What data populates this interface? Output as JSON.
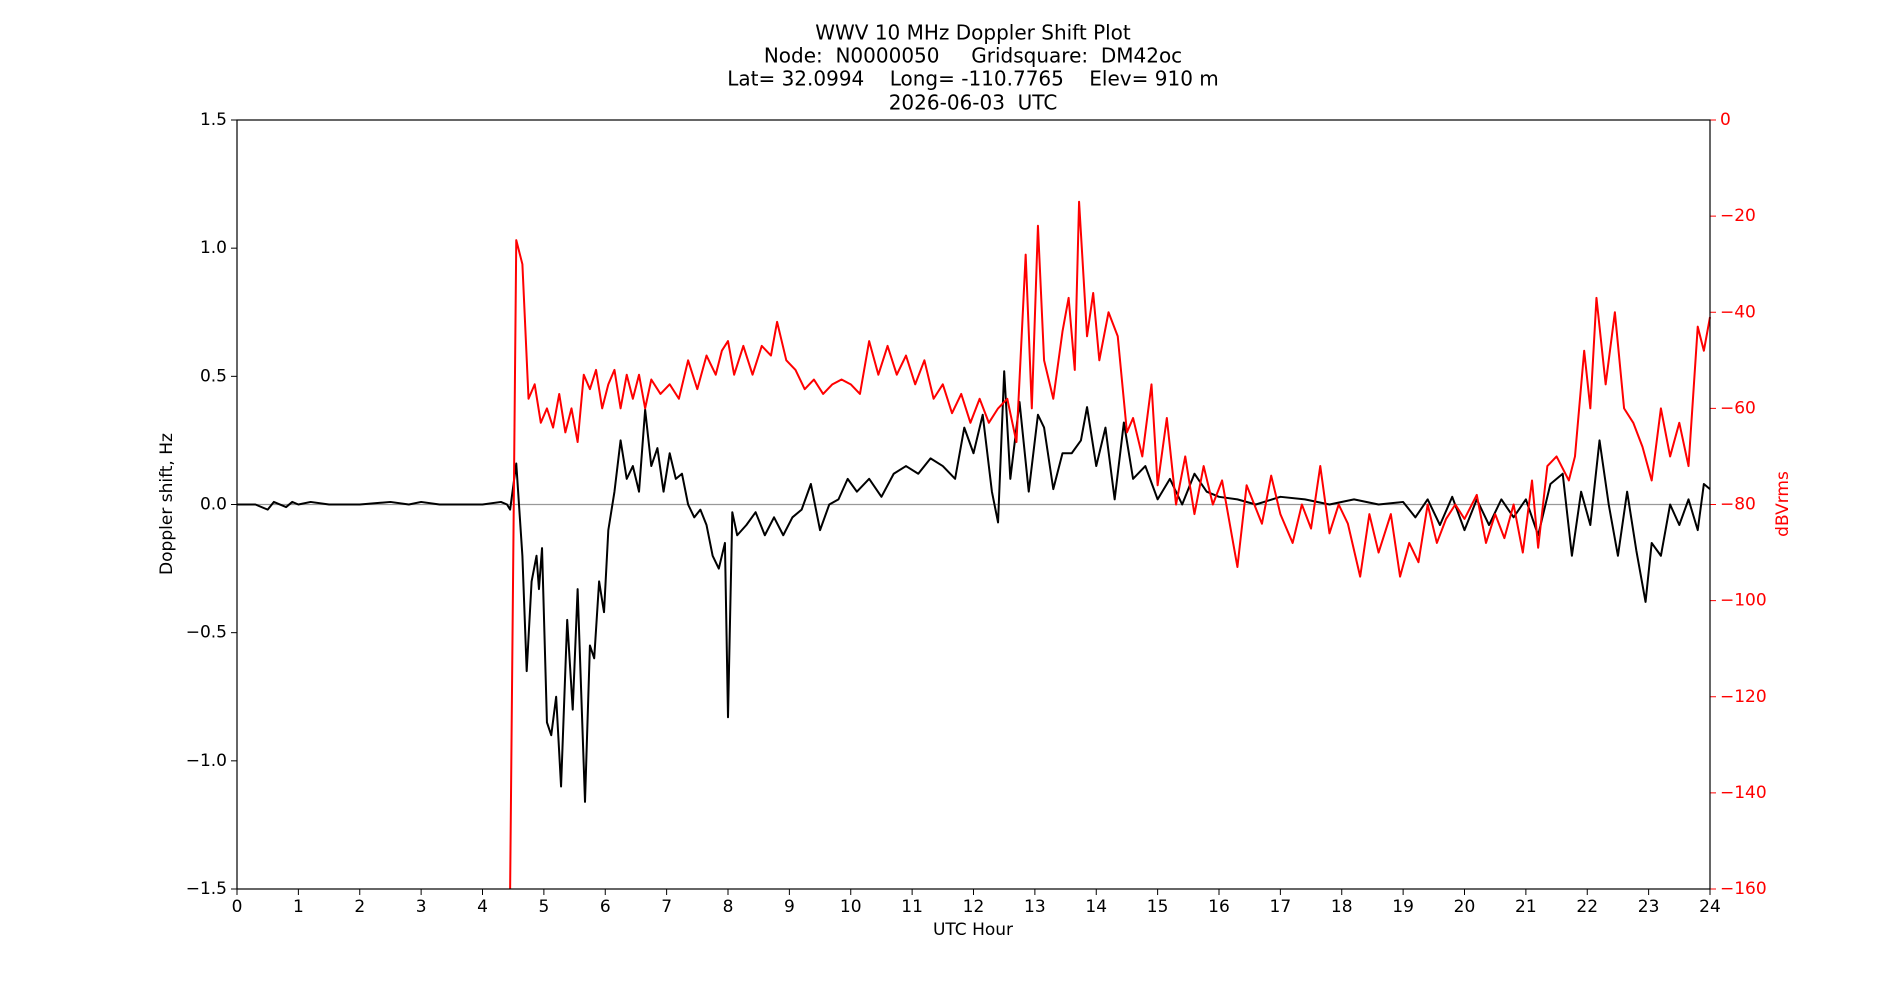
{
  "chart_data": {
    "type": "line",
    "title": [
      "WWV 10 MHz Doppler Shift Plot",
      "Node:  N0000050     Gridsquare:  DM42oc",
      "Lat= 32.0994    Long= -110.7765    Elev= 910 m",
      "2026-06-03  UTC"
    ],
    "xlabel": "UTC Hour",
    "ylabel": "Doppler shift, Hz",
    "y2label": "dBVrms",
    "y2color": "#ff0000",
    "xlim": [
      0,
      24
    ],
    "xticks": [
      0,
      1,
      2,
      3,
      4,
      5,
      6,
      7,
      8,
      9,
      10,
      11,
      12,
      13,
      14,
      15,
      16,
      17,
      18,
      19,
      20,
      21,
      22,
      23,
      24
    ],
    "ylim": [
      -1.5,
      1.5
    ],
    "yticks": [
      {
        "value": -1.5,
        "label": "−1.5"
      },
      {
        "value": -1,
        "label": "−1.0"
      },
      {
        "value": -0.5,
        "label": "−0.5"
      },
      {
        "value": 0,
        "label": "0.0"
      },
      0.5,
      {
        "value": 1,
        "label": "1.0"
      },
      1.5
    ],
    "y2lim": [
      -160,
      0
    ],
    "y2ticks": [
      {
        "value": -160,
        "label": "−160"
      },
      {
        "value": -140,
        "label": "−140"
      },
      {
        "value": -120,
        "label": "−120"
      },
      {
        "value": -100,
        "label": "−100"
      },
      {
        "value": -80,
        "label": "−80"
      },
      {
        "value": -60,
        "label": "−60"
      },
      {
        "value": -40,
        "label": "−40"
      },
      {
        "value": -20,
        "label": "−20"
      },
      0
    ],
    "zero_line": true,
    "series": [
      {
        "color": "#000000",
        "x": [
          0,
          0.3,
          0.5,
          0.6,
          0.8,
          0.9,
          1.0,
          1.2,
          1.5,
          2.0,
          2.5,
          2.8,
          3.0,
          3.3,
          3.6,
          4.0,
          4.3,
          4.4,
          4.45,
          4.55,
          4.65,
          4.72,
          4.8,
          4.88,
          4.92,
          4.97,
          5.05,
          5.12,
          5.2,
          5.28,
          5.38,
          5.47,
          5.55,
          5.67,
          5.75,
          5.82,
          5.9,
          5.98,
          6.05,
          6.15,
          6.25,
          6.35,
          6.45,
          6.55,
          6.65,
          6.75,
          6.85,
          6.95,
          7.05,
          7.15,
          7.25,
          7.35,
          7.45,
          7.55,
          7.65,
          7.75,
          7.85,
          7.95,
          8.0,
          8.07,
          8.15,
          8.3,
          8.45,
          8.6,
          8.75,
          8.9,
          9.05,
          9.2,
          9.35,
          9.5,
          9.65,
          9.8,
          9.95,
          10.1,
          10.3,
          10.5,
          10.7,
          10.9,
          11.1,
          11.3,
          11.5,
          11.7,
          11.85,
          12.0,
          12.15,
          12.3,
          12.4,
          12.5,
          12.6,
          12.75,
          12.9,
          13.05,
          13.15,
          13.3,
          13.45,
          13.6,
          13.75,
          13.85,
          14.0,
          14.15,
          14.3,
          14.45,
          14.6,
          14.8,
          15.0,
          15.2,
          15.4,
          15.6,
          15.8,
          16.0,
          16.3,
          16.6,
          17.0,
          17.4,
          17.8,
          18.2,
          18.6,
          19.0,
          19.2,
          19.4,
          19.6,
          19.8,
          20.0,
          20.2,
          20.4,
          20.6,
          20.8,
          21.0,
          21.2,
          21.4,
          21.6,
          21.75,
          21.9,
          22.05,
          22.2,
          22.35,
          22.5,
          22.65,
          22.8,
          22.95,
          23.05,
          23.2,
          23.35,
          23.5,
          23.65,
          23.8,
          23.9,
          24.0
        ],
        "values": [
          0,
          0,
          -0.02,
          0.01,
          -0.01,
          0.01,
          0,
          0.01,
          0,
          0,
          0.01,
          0,
          0.01,
          0,
          0,
          0,
          0.01,
          0,
          -0.02,
          0.16,
          -0.2,
          -0.65,
          -0.3,
          -0.2,
          -0.33,
          -0.17,
          -0.85,
          -0.9,
          -0.75,
          -1.1,
          -0.45,
          -0.8,
          -0.33,
          -1.16,
          -0.55,
          -0.6,
          -0.3,
          -0.42,
          -0.1,
          0.05,
          0.25,
          0.1,
          0.15,
          0.05,
          0.37,
          0.15,
          0.22,
          0.05,
          0.2,
          0.1,
          0.12,
          0,
          -0.05,
          -0.02,
          -0.08,
          -0.2,
          -0.25,
          -0.15,
          -0.83,
          -0.03,
          -0.12,
          -0.08,
          -0.03,
          -0.12,
          -0.05,
          -0.12,
          -0.05,
          -0.02,
          0.08,
          -0.1,
          0,
          0.02,
          0.1,
          0.05,
          0.1,
          0.03,
          0.12,
          0.15,
          0.12,
          0.18,
          0.15,
          0.1,
          0.3,
          0.2,
          0.35,
          0.05,
          -0.07,
          0.52,
          0.1,
          0.4,
          0.05,
          0.35,
          0.3,
          0.06,
          0.2,
          0.2,
          0.25,
          0.38,
          0.15,
          0.3,
          0.02,
          0.32,
          0.1,
          0.15,
          0.02,
          0.1,
          0,
          0.12,
          0.05,
          0.03,
          0.02,
          0,
          0.03,
          0.02,
          0,
          0.02,
          0,
          0.01,
          -0.05,
          0.02,
          -0.08,
          0.03,
          -0.1,
          0.02,
          -0.08,
          0.02,
          -0.05,
          0.02,
          -0.12,
          0.08,
          0.12,
          -0.2,
          0.05,
          -0.08,
          0.25,
          0,
          -0.2,
          0.05,
          -0.18,
          -0.38,
          -0.15,
          -0.2,
          0,
          -0.08,
          0.02,
          -0.1,
          0.08,
          0.06
        ]
      },
      {
        "color": "#ff0000",
        "axis": "y2",
        "x": [
          4.45,
          4.55,
          4.65,
          4.75,
          4.85,
          4.95,
          5.05,
          5.15,
          5.25,
          5.35,
          5.45,
          5.55,
          5.65,
          5.75,
          5.85,
          5.95,
          6.05,
          6.15,
          6.25,
          6.35,
          6.45,
          6.55,
          6.65,
          6.75,
          6.9,
          7.05,
          7.2,
          7.35,
          7.5,
          7.65,
          7.8,
          7.9,
          8.0,
          8.1,
          8.25,
          8.4,
          8.55,
          8.7,
          8.8,
          8.95,
          9.1,
          9.25,
          9.4,
          9.55,
          9.7,
          9.85,
          10.0,
          10.15,
          10.3,
          10.45,
          10.6,
          10.75,
          10.9,
          11.05,
          11.2,
          11.35,
          11.5,
          11.65,
          11.8,
          11.95,
          12.1,
          12.25,
          12.4,
          12.55,
          12.7,
          12.85,
          12.95,
          13.05,
          13.15,
          13.3,
          13.45,
          13.55,
          13.65,
          13.72,
          13.85,
          13.95,
          14.05,
          14.2,
          14.35,
          14.5,
          14.6,
          14.75,
          14.9,
          15.0,
          15.15,
          15.3,
          15.45,
          15.6,
          15.75,
          15.9,
          16.05,
          16.3,
          16.45,
          16.7,
          16.85,
          17.0,
          17.2,
          17.35,
          17.5,
          17.65,
          17.8,
          17.95,
          18.1,
          18.3,
          18.45,
          18.6,
          18.8,
          18.95,
          19.1,
          19.25,
          19.4,
          19.55,
          19.7,
          19.85,
          20.0,
          20.2,
          20.35,
          20.5,
          20.65,
          20.8,
          20.95,
          21.1,
          21.2,
          21.35,
          21.5,
          21.7,
          21.8,
          21.95,
          22.05,
          22.15,
          22.3,
          22.45,
          22.6,
          22.75,
          22.9,
          23.05,
          23.2,
          23.35,
          23.5,
          23.65,
          23.8,
          23.9,
          24.0
        ],
        "values": [
          -160,
          -25,
          -30,
          -58,
          -55,
          -63,
          -60,
          -64,
          -57,
          -65,
          -60,
          -67,
          -53,
          -56,
          -52,
          -60,
          -55,
          -52,
          -60,
          -53,
          -58,
          -53,
          -60,
          -54,
          -57,
          -55,
          -58,
          -50,
          -56,
          -49,
          -53,
          -48,
          -46,
          -53,
          -47,
          -53,
          -47,
          -49,
          -42,
          -50,
          -52,
          -56,
          -54,
          -57,
          -55,
          -54,
          -55,
          -57,
          -46,
          -53,
          -47,
          -53,
          -49,
          -55,
          -50,
          -58,
          -55,
          -61,
          -57,
          -63,
          -58,
          -63,
          -60,
          -58,
          -67,
          -28,
          -60,
          -22,
          -50,
          -58,
          -44,
          -37,
          -52,
          -17,
          -45,
          -36,
          -50,
          -40,
          -45,
          -65,
          -62,
          -70,
          -55,
          -76,
          -62,
          -80,
          -70,
          -82,
          -72,
          -80,
          -75,
          -93,
          -76,
          -84,
          -74,
          -82,
          -88,
          -80,
          -85,
          -72,
          -86,
          -80,
          -84,
          -95,
          -82,
          -90,
          -82,
          -95,
          -88,
          -92,
          -80,
          -88,
          -83,
          -80,
          -83,
          -78,
          -88,
          -82,
          -87,
          -80,
          -90,
          -75,
          -89,
          -72,
          -70,
          -75,
          -70,
          -48,
          -60,
          -37,
          -55,
          -40,
          -60,
          -63,
          -68,
          -75,
          -60,
          -70,
          -63,
          -72,
          -43,
          -48,
          -41
        ]
      }
    ]
  }
}
